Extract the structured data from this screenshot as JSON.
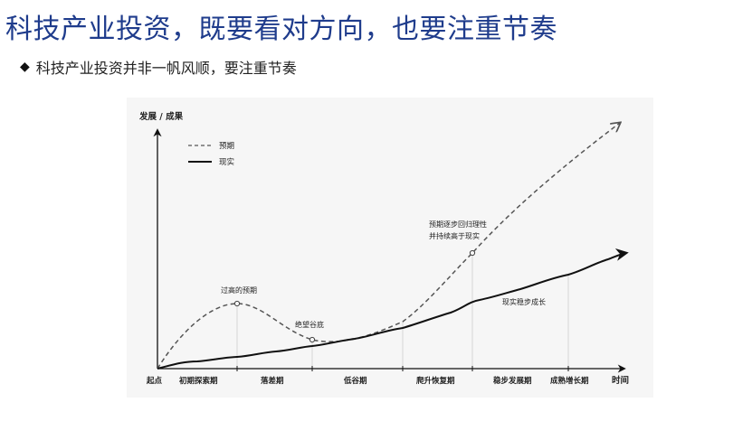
{
  "slide": {
    "title": "科技产业投资，既要看对方向，也要注重节奏",
    "bullet": "科技产业投资并非一帆风顺，要注重节奏"
  },
  "diagram": {
    "y_axis_label": "发展 / 成果",
    "x_axis_label": "时间",
    "origin_label": "起点",
    "legend": {
      "expected": "预期",
      "reality": "现实"
    },
    "phases": [
      "初期探索期",
      "落差期",
      "低谷期",
      "爬升恢复期",
      "稳步发展期",
      "成熟增长期"
    ],
    "annotations": {
      "peak": "过高的预期",
      "trough": "绝望谷底",
      "crossover_line1": "预期逐步回归理性",
      "crossover_line2": "并持续高于现实",
      "reality_steady": "现实稳步成长"
    },
    "colors": {
      "title": "#1f3c8c",
      "expected_line": "#555555",
      "reality_line": "#111111"
    }
  }
}
